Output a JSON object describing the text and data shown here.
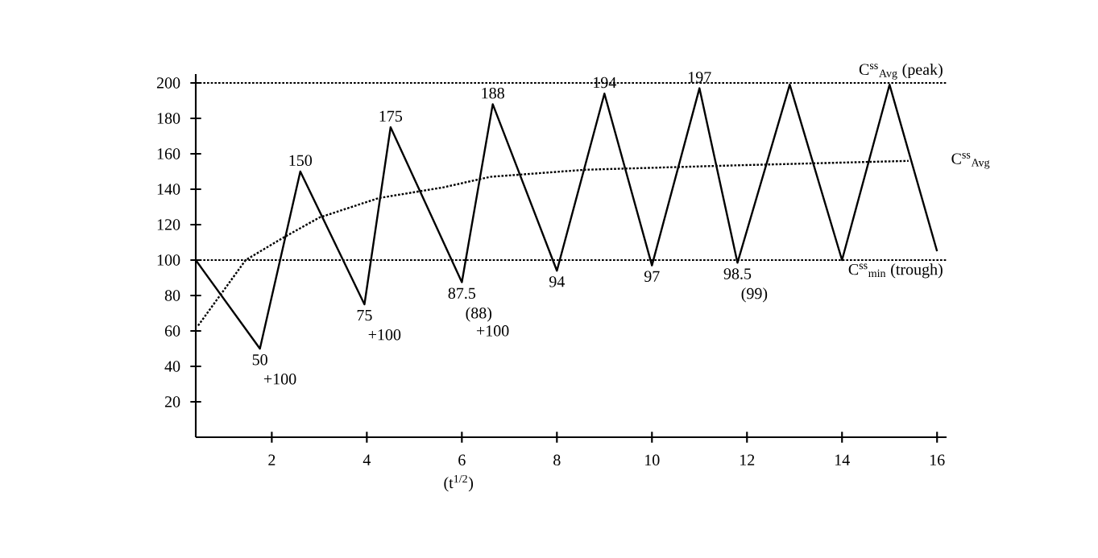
{
  "chart_data": {
    "type": "line",
    "xlabel": "(t$^{1/2}$)",
    "xlim": [
      0.4,
      16.2
    ],
    "ylim": [
      0,
      205
    ],
    "xticks": [
      2,
      4,
      6,
      8,
      10,
      12,
      14,
      16
    ],
    "yticks": [
      20,
      40,
      60,
      80,
      100,
      120,
      140,
      160,
      180,
      200
    ],
    "series": [
      {
        "color": "#000000",
        "line_style": "solid",
        "x": [
          0.4,
          1.75,
          2.6,
          3.95,
          4.5,
          6.0,
          6.65,
          8.0,
          9.0,
          10.0,
          11.0,
          11.8,
          12.9,
          14.0,
          15.0,
          16.0
        ],
        "values": [
          100,
          50,
          150,
          75,
          175,
          87.5,
          188,
          94,
          194,
          97,
          197,
          98.5,
          199,
          100,
          199,
          105
        ],
        "value_labels": [
          null,
          "50",
          "150",
          "75",
          "175",
          "87.5",
          "188",
          "94",
          "194",
          "97",
          "197",
          "98.5",
          null,
          null,
          null,
          null
        ]
      },
      {
        "name": "C$^{ss}$$_{Avg}$",
        "color": "#000000",
        "line_style": "dotted",
        "x": [
          0.45,
          1.45,
          2.2,
          3.0,
          4.25,
          5.6,
          6.6,
          8.6,
          11.8,
          15.4
        ],
        "values": [
          63,
          100,
          112,
          124,
          135,
          141,
          147,
          151,
          153.5,
          156
        ]
      }
    ],
    "ref_lines": [
      {
        "axis": "y",
        "value": 200,
        "label": "C$^{ss}$$_{Avg}$ (peak)",
        "line_style": "dotted",
        "color": "#000000"
      },
      {
        "axis": "y",
        "value": 100,
        "label": "C$^{ss}$$_{min}$ (trough)",
        "line_style": "dotted",
        "color": "#000000"
      }
    ],
    "annotations": [
      {
        "text": "+100",
        "x": 1.75,
        "y": 50
      },
      {
        "text": "+100",
        "x": 3.95,
        "y": 75
      },
      {
        "text": "(88)",
        "x": 6.0,
        "y": 87.5
      },
      {
        "text": "+100",
        "x": 6.0,
        "y": 87.5
      },
      {
        "text": "(99)",
        "x": 11.8,
        "y": 98.5
      }
    ]
  }
}
